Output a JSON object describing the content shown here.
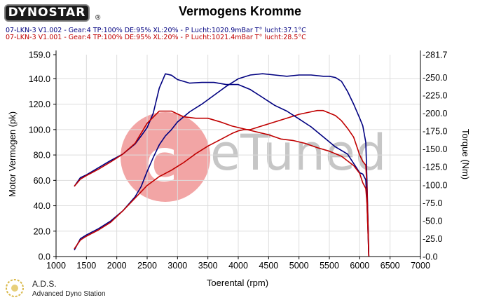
{
  "header": {
    "logo_text": "DYNOSTAR",
    "title": "Vermogens Kromme",
    "title_mark": "®",
    "runs": [
      {
        "label": "07-LKN-3 V1.002 - Gear:4 TP:100% DE:95% XL:20%   - P Lucht:1020.9mBar T° lucht:37.1°C",
        "color": "#000080"
      },
      {
        "label": "07-LKN-3 V1.001 - Gear:4 TP:100% DE:95% XL:20%   - P Lucht:1021.4mBar T° lucht:28.5°C",
        "color": "#c00000"
      }
    ]
  },
  "footer": {
    "brand": "A.D.S.",
    "brand_full": "Advanced Dyno Station"
  },
  "watermark": {
    "text": "eTuned",
    "circle_letter": "c",
    "circle_color": "#e85c5c"
  },
  "chart_data": {
    "type": "line",
    "title": "Vermogens Kromme",
    "xlabel": "Toerental (rpm)",
    "ylabel": "Motor Vermogen (pk)",
    "y2label": "Torque (Nm)",
    "xlim": [
      1000,
      7000
    ],
    "ylim": [
      0.0,
      159.0
    ],
    "y2lim": [
      0.0,
      281.7
    ],
    "x_ticks": [
      1000,
      1500,
      2000,
      2500,
      3000,
      3500,
      4000,
      4500,
      5000,
      5500,
      6000,
      6500,
      7000
    ],
    "y_ticks": [
      0.0,
      20.0,
      40.0,
      60.0,
      80.0,
      100.0,
      120.0,
      140.0,
      159.0
    ],
    "y2_ticks": [
      0.0,
      25.0,
      50.0,
      75.0,
      100.0,
      125.0,
      150.0,
      175.0,
      200.0,
      225.0,
      250.0,
      281.7
    ],
    "y_tick_labels": [
      "0.0",
      "20.0",
      "40.0",
      "60.0",
      "80.0",
      "100.0",
      "120.0",
      "140.0",
      "159.0"
    ],
    "y2_tick_labels": [
      "-0.0",
      "-25.0",
      "-50.0",
      "-75.0",
      "-100.0",
      "-125.0",
      "-150.0",
      "-175.0",
      "-200.0",
      "-225.0",
      "-250.0",
      "-281.7"
    ],
    "grid": true,
    "series": [
      {
        "name": "07-LKN-3 V1.002 power",
        "axis": "left",
        "color": "#000080",
        "x": [
          1300,
          1400,
          1500,
          1700,
          1900,
          2100,
          2300,
          2400,
          2500,
          2600,
          2700,
          2800,
          2900,
          3000,
          3200,
          3400,
          3600,
          3800,
          4000,
          4200,
          4400,
          4600,
          4800,
          5000,
          5200,
          5400,
          5500,
          5600,
          5700,
          5800,
          5900,
          6000,
          6050,
          6100,
          6120,
          6140,
          6150
        ],
        "y": [
          5,
          14,
          17,
          22,
          28,
          36,
          47,
          55,
          67,
          78,
          88,
          95,
          100,
          106,
          114,
          120,
          127,
          134,
          140,
          143,
          144,
          143,
          142,
          143,
          143,
          142,
          142,
          141,
          138,
          130,
          120,
          109,
          103,
          90,
          60,
          20,
          0
        ]
      },
      {
        "name": "07-LKN-3 V1.001 power",
        "axis": "left",
        "color": "#c00000",
        "x": [
          1300,
          1400,
          1500,
          1700,
          1900,
          2100,
          2300,
          2500,
          2700,
          2900,
          3100,
          3300,
          3500,
          3700,
          3900,
          4000,
          4100,
          4200,
          4400,
          4600,
          4800,
          5000,
          5200,
          5300,
          5400,
          5500,
          5600,
          5700,
          5800,
          5900,
          6000,
          6050,
          6100,
          6120,
          6140,
          6150
        ],
        "y": [
          6,
          13,
          16,
          21,
          27,
          36,
          46,
          56,
          63,
          68,
          74,
          81,
          87,
          92,
          97,
          99,
          100,
          100,
          103,
          106,
          109,
          112,
          114,
          115,
          115,
          113,
          111,
          107,
          101,
          94,
          80,
          75,
          72,
          55,
          20,
          0
        ]
      },
      {
        "name": "07-LKN-3 V1.002 torque",
        "axis": "right",
        "color": "#000080",
        "x": [
          1300,
          1400,
          1500,
          1700,
          1900,
          2100,
          2300,
          2400,
          2500,
          2600,
          2700,
          2800,
          2900,
          3000,
          3200,
          3400,
          3600,
          3800,
          4000,
          4200,
          4400,
          4600,
          4800,
          5000,
          5200,
          5400,
          5600,
          5800,
          6000,
          6050,
          6100,
          6120,
          6140,
          6150
        ],
        "y": [
          98,
          110,
          114,
          124,
          134,
          143,
          157,
          168,
          180,
          200,
          235,
          255,
          253,
          247,
          242,
          243,
          243,
          240,
          240,
          233,
          222,
          211,
          203,
          192,
          181,
          167,
          153,
          143,
          117,
          115,
          107,
          75,
          25,
          0
        ]
      },
      {
        "name": "07-LKN-3 V1.001 torque",
        "axis": "right",
        "color": "#c00000",
        "x": [
          1300,
          1400,
          1500,
          1700,
          1900,
          2100,
          2300,
          2500,
          2700,
          2900,
          3100,
          3300,
          3500,
          3700,
          3900,
          4100,
          4300,
          4500,
          4700,
          4900,
          5100,
          5300,
          5500,
          5700,
          5900,
          6000,
          6050,
          6100,
          6120,
          6140,
          6150
        ],
        "y": [
          98,
          108,
          113,
          122,
          132,
          143,
          158,
          186,
          203,
          203,
          195,
          193,
          193,
          188,
          182,
          178,
          174,
          170,
          164,
          162,
          158,
          152,
          147,
          140,
          127,
          116,
          103,
          95,
          75,
          25,
          0
        ]
      }
    ]
  }
}
